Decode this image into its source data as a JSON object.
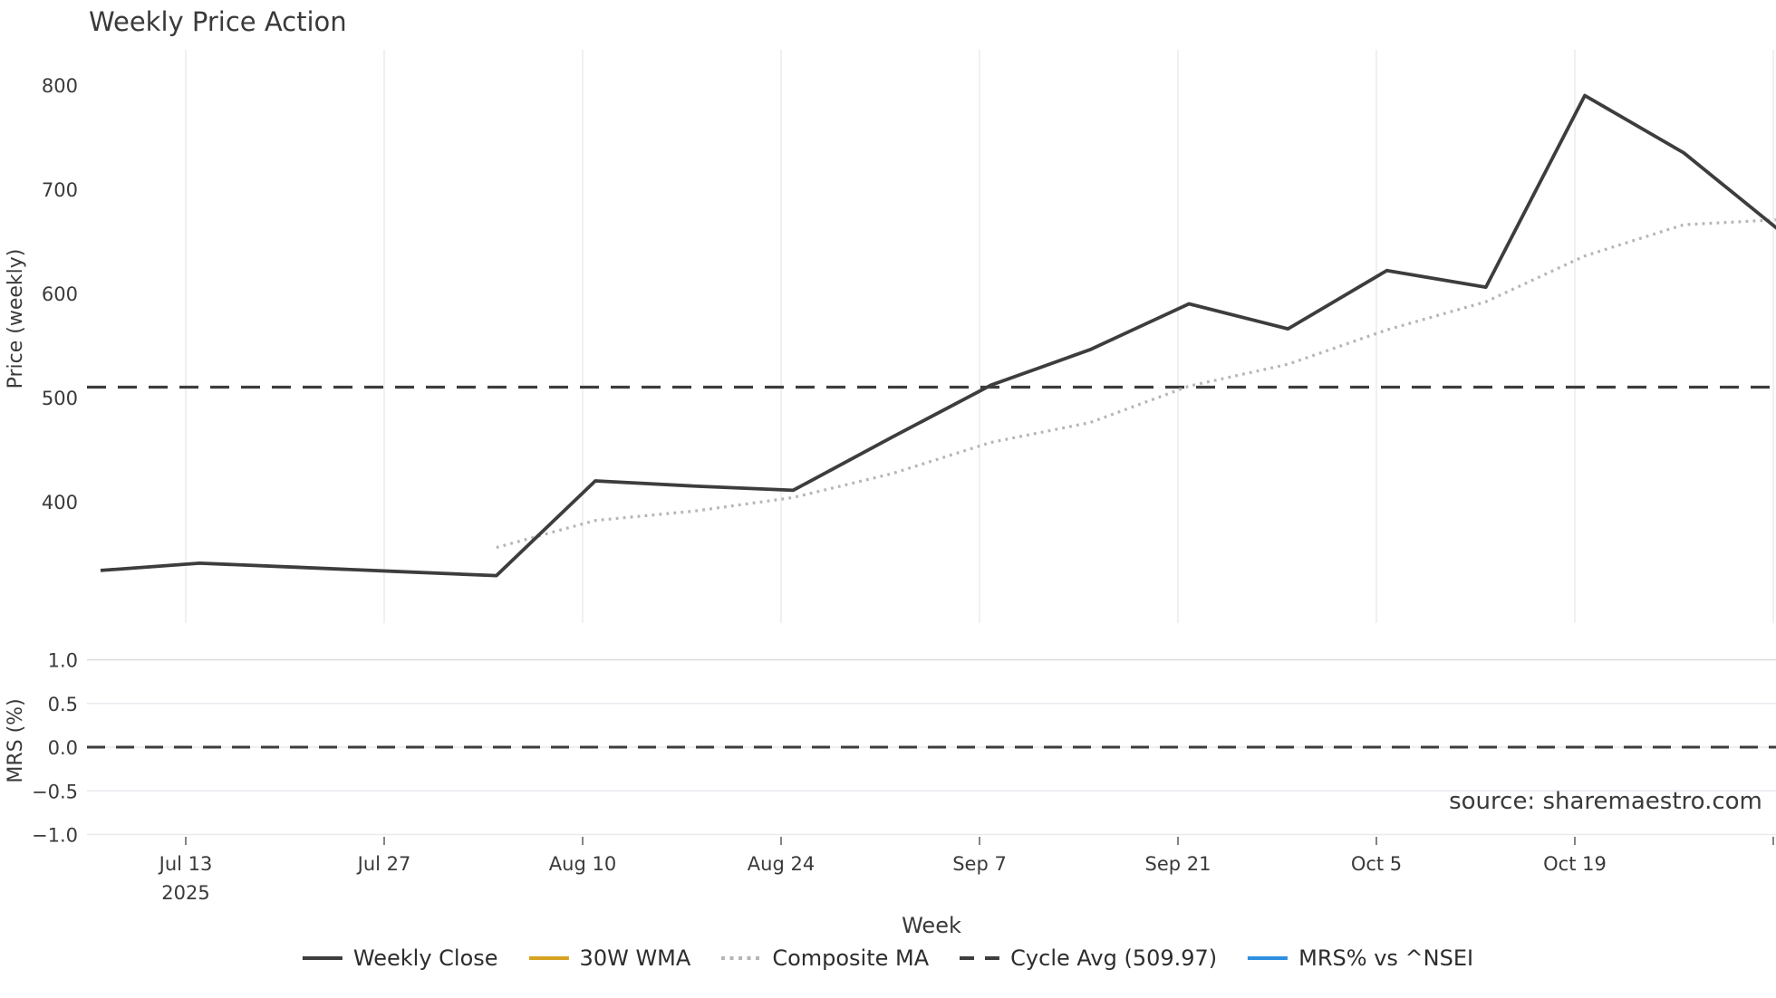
{
  "title": "Weekly Price Action",
  "source": "source: sharemaestro.com",
  "price_axis": {
    "label": "Price (weekly)",
    "ticks": [
      800,
      700,
      600,
      500,
      400
    ],
    "ylim": [
      285,
      835
    ]
  },
  "mrs_axis": {
    "label": "MRS (%)",
    "tick_labels": [
      "1.0",
      "0.5",
      "0.0",
      "−0.5",
      "−1.0"
    ],
    "tick_values": [
      1.0,
      0.5,
      0.0,
      -0.5,
      -1.0
    ],
    "ylim": [
      -1.25,
      1.25
    ]
  },
  "x_axis": {
    "label": "Week",
    "tick_labels": [
      "Jul 13",
      "Jul 27",
      "Aug 10",
      "Aug 24",
      "Sep 7",
      "Sep 21",
      "Oct 5",
      "Oct 19"
    ],
    "first_tick_year": "2025",
    "num_gridlines": 9
  },
  "legend": [
    {
      "label": "Weekly Close",
      "style": "solid",
      "color": "#3d3d3d"
    },
    {
      "label": "30W WMA",
      "style": "solid",
      "color": "#d6a321"
    },
    {
      "label": "Composite MA",
      "style": "dotted",
      "color": "#b5b5b5"
    },
    {
      "label": "Cycle Avg (509.97)",
      "style": "dashed",
      "color": "#3d3d3d"
    },
    {
      "label": "MRS% vs ^NSEI",
      "style": "solid",
      "color": "#2e8fe0"
    }
  ],
  "chart_data": [
    {
      "type": "line",
      "panel": "price",
      "title": "Weekly Price Action",
      "xlabel": "Week",
      "ylabel": "Price (weekly)",
      "x": [
        "2025-07-07",
        "2025-07-14",
        "2025-07-21",
        "2025-07-28",
        "2025-08-04",
        "2025-08-11",
        "2025-08-18",
        "2025-08-25",
        "2025-09-01",
        "2025-09-08",
        "2025-09-15",
        "2025-09-22",
        "2025-09-29",
        "2025-10-06",
        "2025-10-13",
        "2025-10-20",
        "2025-10-27",
        "2025-11-03"
      ],
      "ylim": [
        285,
        835
      ],
      "yticks": [
        400,
        500,
        600,
        700,
        800
      ],
      "grid": "vertical-only",
      "legend_position": "bottom-center",
      "series": [
        {
          "name": "Weekly Close",
          "style": "solid",
          "color": "#3d3d3d",
          "values": [
            334,
            341,
            337,
            333,
            329,
            420,
            415,
            411,
            462,
            512,
            546,
            590,
            566,
            622,
            606,
            790,
            735,
            658
          ]
        },
        {
          "name": "30W WMA",
          "style": "solid",
          "color": "#d6a321",
          "values": []
        },
        {
          "name": "Composite MA",
          "style": "dotted",
          "color": "#b5b5b5",
          "values": [
            null,
            null,
            null,
            null,
            356,
            382,
            391,
            404,
            427,
            457,
            476,
            511,
            532,
            565,
            592,
            636,
            666,
            671
          ]
        },
        {
          "name": "Cycle Avg (509.97)",
          "style": "dashed",
          "color": "#3d3d3d",
          "constant": 509.97
        }
      ]
    },
    {
      "type": "line",
      "panel": "mrs",
      "ylabel": "MRS (%)",
      "ylim": [
        -1.25,
        1.25
      ],
      "yticks": [
        1.0,
        0.5,
        0.0,
        -0.5,
        -1.0
      ],
      "grid": "horizontal-only",
      "zero_line": {
        "style": "dashed",
        "color": "#3d3d3d",
        "value": 0.0
      },
      "series": [
        {
          "name": "MRS% vs ^NSEI",
          "style": "solid",
          "color": "#2e8fe0",
          "values": []
        }
      ]
    }
  ]
}
